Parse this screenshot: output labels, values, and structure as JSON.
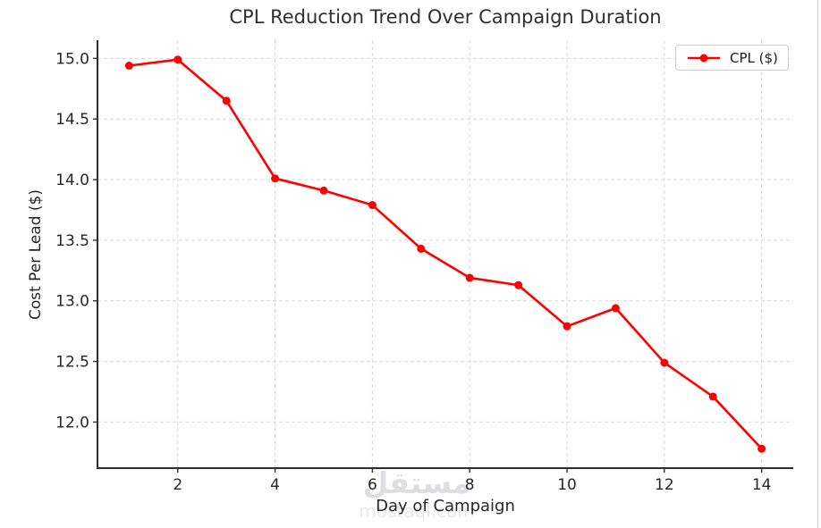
{
  "chart_data": {
    "type": "line",
    "title": "CPL Reduction Trend Over Campaign Duration",
    "xlabel": "Day of Campaign",
    "ylabel": "Cost Per Lead ($)",
    "x": [
      1,
      2,
      3,
      4,
      5,
      6,
      7,
      8,
      9,
      10,
      11,
      12,
      13,
      14
    ],
    "series": [
      {
        "name": "CPL ($)",
        "color": "#ff0000",
        "values": [
          14.94,
          14.99,
          14.65,
          14.01,
          13.91,
          13.79,
          13.43,
          13.19,
          13.13,
          12.79,
          12.94,
          12.49,
          12.21,
          11.78
        ]
      }
    ],
    "xlim": [
      0.35,
      14.65
    ],
    "ylim": [
      11.62,
      15.15
    ],
    "xticks": [
      {
        "v": 2,
        "label": "2"
      },
      {
        "v": 4,
        "label": "4"
      },
      {
        "v": 6,
        "label": "6"
      },
      {
        "v": 8,
        "label": "8"
      },
      {
        "v": 10,
        "label": "10"
      },
      {
        "v": 12,
        "label": "12"
      },
      {
        "v": 14,
        "label": "14"
      }
    ],
    "yticks": [
      {
        "v": 12.0,
        "label": "12.0"
      },
      {
        "v": 12.5,
        "label": "12.5"
      },
      {
        "v": 13.0,
        "label": "13.0"
      },
      {
        "v": 13.5,
        "label": "13.5"
      },
      {
        "v": 14.0,
        "label": "14.0"
      },
      {
        "v": 14.5,
        "label": "14.5"
      },
      {
        "v": 15.0,
        "label": "15.0"
      }
    ],
    "grid": true,
    "grid_style": "dashed",
    "legend": {
      "position": "upper-right"
    }
  },
  "watermark": {
    "arabic": "مستقل",
    "domain": "mostaql.com"
  }
}
